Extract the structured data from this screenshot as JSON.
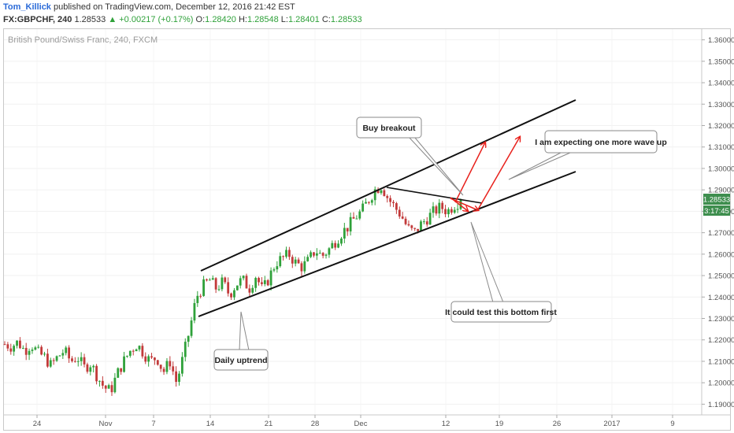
{
  "header": {
    "author": "Tom_Killick",
    "published": "published on TradingView.com, December 12, 2016 21:42 EST",
    "symbol": "FX:GBPCHF, 240",
    "last": "1.28533",
    "change": "▲ +0.00217 (+0.17%)",
    "open_label": "O:",
    "open": "1.28420",
    "high_label": "H:",
    "high": "1.28548",
    "low_label": "L:",
    "low": "1.28401",
    "close_label": "C:",
    "close": "1.28533"
  },
  "watermark": "British Pound/Swiss Franc, 240, FXCM",
  "price_label": "1.28533",
  "countdown_label": "3:17:45",
  "annotations": {
    "buy": "Buy breakout",
    "wave": "I am expecting one more wave up",
    "bottom": "It could test this bottom first",
    "daily": "Daily uptrend"
  },
  "colors": {
    "up": "#2fa13a",
    "down": "#c23a3a",
    "arrow": "#e8211c",
    "channel": "#111111",
    "accent_label": "#3e8e4e"
  },
  "chart_data": {
    "type": "candlestick",
    "symbol": "GBPCHF",
    "timeframe": "240",
    "y_ticks": [
      "1.19000",
      "1.20000",
      "1.21000",
      "1.22000",
      "1.23000",
      "1.24000",
      "1.25000",
      "1.26000",
      "1.27000",
      "1.28000",
      "1.29000",
      "1.30000",
      "1.31000",
      "1.32000",
      "1.33000",
      "1.34000",
      "1.35000",
      "1.36000"
    ],
    "ylim": [
      1.185,
      1.365
    ],
    "x_ticks": [
      "24",
      "Nov",
      "7",
      "14",
      "21",
      "28",
      "Dec",
      "12",
      "19",
      "26",
      "2017",
      "9"
    ],
    "close_path": [
      1.218,
      1.217,
      1.219,
      1.215,
      1.218,
      1.214,
      1.212,
      1.208,
      1.212,
      1.215,
      1.21,
      1.212,
      1.207,
      1.209,
      1.203,
      1.198,
      1.196,
      1.204,
      1.21,
      1.215,
      1.218,
      1.214,
      1.21,
      1.212,
      1.205,
      1.21,
      1.2,
      1.212,
      1.225,
      1.24,
      1.245,
      1.248,
      1.244,
      1.247,
      1.241,
      1.246,
      1.248,
      1.244,
      1.25,
      1.243,
      1.249,
      1.256,
      1.258,
      1.26,
      1.256,
      1.254,
      1.257,
      1.262,
      1.259,
      1.262,
      1.266,
      1.27,
      1.273,
      1.277,
      1.28,
      1.285,
      1.29,
      1.292,
      1.286,
      1.282,
      1.278,
      1.272,
      1.27,
      1.274,
      1.277,
      1.28,
      1.282,
      1.28,
      1.283,
      1.285
    ],
    "channel_upper": {
      "from": [
        "12 Nov",
        1.2505
      ],
      "to": [
        "31 Dec",
        1.331
      ]
    },
    "channel_lower": {
      "from": [
        "12 Nov",
        1.2295
      ],
      "to": [
        "31 Dec",
        1.2985
      ]
    },
    "flag_line": {
      "from": [
        "4 Dec",
        1.291
      ],
      "to": [
        "15 Dec",
        1.285
      ]
    },
    "current_price": 1.28533
  }
}
